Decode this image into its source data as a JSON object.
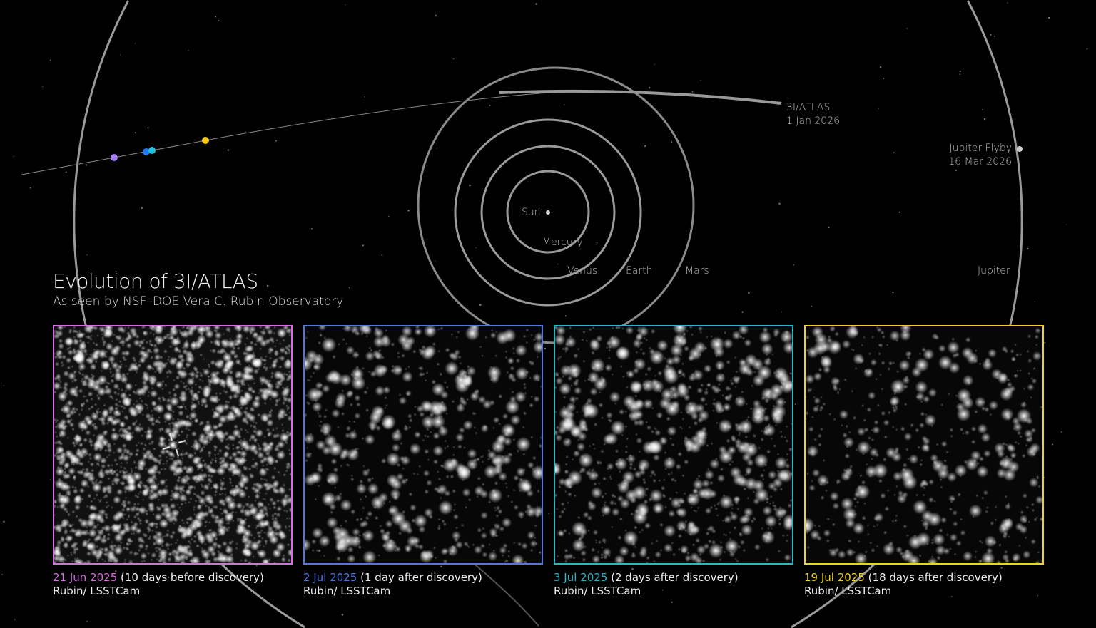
{
  "title": "Evolution of 3I/ATLAS",
  "subtitle": "As seen by NSF–DOE Vera C. Rubin Observatory",
  "diagram": {
    "labels": {
      "sun": "Sun",
      "mercury": "Mercury",
      "venus": "Venus",
      "earth": "Earth",
      "mars": "Mars",
      "jupiter": "Jupiter",
      "atlas_name": "3I/ATLAS",
      "atlas_date": "1 Jan 2026",
      "flyby_name": "Jupiter Flyby",
      "flyby_date": "16 Mar 2026"
    },
    "trajectory_markers": [
      {
        "date": "21 Jun 2025",
        "color": "#a77ef0"
      },
      {
        "date": "2 Jul 2025",
        "color": "#1f7cf0"
      },
      {
        "date": "3 Jul 2025",
        "color": "#22c0d8"
      },
      {
        "date": "19 Jul 2025",
        "color": "#f5cc1a"
      }
    ]
  },
  "panels": [
    {
      "date": "21 Jun 2025",
      "note": " (10 days before discovery)",
      "instrument": "Rubin/ LSSTCam",
      "color": "#d56ee0"
    },
    {
      "date": "2 Jul 2025",
      "note": " (1 day after discovery)",
      "instrument": "Rubin/ LSSTCam",
      "color": "#4e78e0"
    },
    {
      "date": "3 Jul 2025",
      "note": " (2 days after discovery)",
      "instrument": "Rubin/ LSSTCam",
      "color": "#2bb6c8"
    },
    {
      "date": "19 Jul 2025",
      "note": " (18 days after discovery)",
      "instrument": "Rubin/ LSSTCam",
      "color": "#f0d024"
    }
  ]
}
